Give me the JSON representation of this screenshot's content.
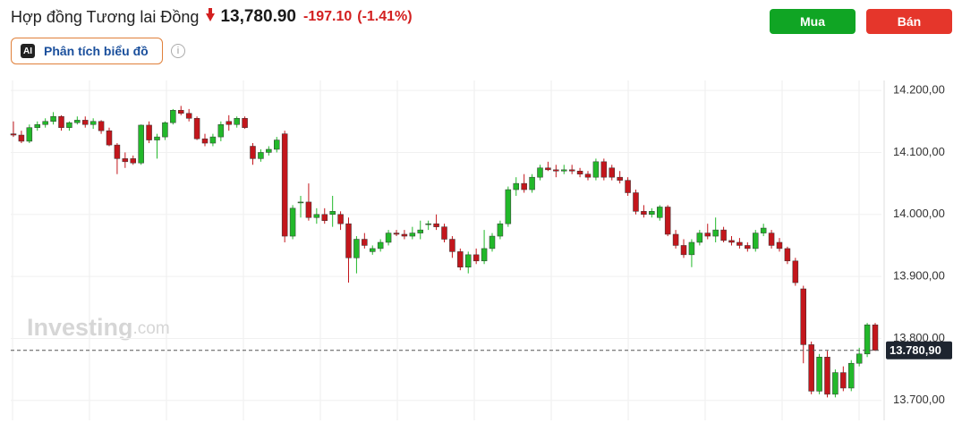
{
  "header": {
    "title": "Hợp đồng Tương lai Đồng",
    "price": "13,780.90",
    "change": "-197.10",
    "change_percent": "(-1.41%)",
    "buy": "Mua",
    "sell": "Bán",
    "ai_badge": "AI",
    "ai_button": "Phân tích biểu đồ"
  },
  "chart_data": {
    "type": "candlestick",
    "watermark": "Investing",
    "watermark_suffix": ".com",
    "up_color": "#22b82a",
    "down_color": "#c3161c",
    "ylim": [
      13668,
      14216
    ],
    "yticks": [
      {
        "value": 13700,
        "label": "13.700,00"
      },
      {
        "value": 13800,
        "label": "13.800,00"
      },
      {
        "value": 13900,
        "label": "13.900,00"
      },
      {
        "value": 14000,
        "label": "14.000,00"
      },
      {
        "value": 14100,
        "label": "14.100,00"
      },
      {
        "value": 14200,
        "label": "14.200,00"
      }
    ],
    "last_price": {
      "value": 13780.9,
      "label": "13.780,90"
    },
    "open": [
      14130,
      14128,
      14118,
      14140,
      14145,
      14150,
      14158,
      14140,
      14148,
      14152,
      14145,
      14150,
      14135,
      14112,
      14090,
      14090,
      14083,
      14144,
      14120,
      14125,
      14148,
      14168,
      14163,
      14155,
      14122,
      14115,
      14125,
      14150,
      14145,
      14155,
      14110,
      14090,
      14100,
      14105,
      14130,
      13965,
      14020,
      14020,
      13995,
      14000,
      14000,
      14000,
      13985,
      13930,
      13960,
      13940,
      13945,
      13955,
      13970,
      13968,
      13965,
      13970,
      13985,
      13985,
      13980,
      13960,
      13940,
      13915,
      13935,
      13925,
      13945,
      13965,
      13985,
      14040,
      14050,
      14040,
      14060,
      14075,
      14072,
      14070,
      14072,
      14070,
      14065,
      14060,
      14085,
      14075,
      14060,
      14055,
      14035,
      14005,
      14000,
      13995,
      14012,
      13968,
      13950,
      13935,
      13955,
      13970,
      13965,
      13975,
      13958,
      13955,
      13950,
      13945,
      13970,
      13970,
      13955,
      13945,
      13925,
      13880,
      13790,
      13715,
      13770,
      13710,
      13745,
      13720,
      13760,
      13775,
      13822
    ],
    "high": [
      14150,
      14135,
      14145,
      14150,
      14155,
      14165,
      14160,
      14150,
      14158,
      14158,
      14155,
      14152,
      14140,
      14115,
      14100,
      14095,
      14145,
      14150,
      14130,
      14150,
      14170,
      14175,
      14170,
      14158,
      14130,
      14130,
      14150,
      14160,
      14158,
      14158,
      14115,
      14105,
      14110,
      14125,
      14135,
      14015,
      14030,
      14050,
      14010,
      14010,
      14030,
      14005,
      13995,
      13965,
      13970,
      13950,
      13960,
      13975,
      13975,
      13975,
      13980,
      13990,
      13990,
      14000,
      13985,
      13965,
      13945,
      13940,
      13945,
      13975,
      13970,
      13990,
      14045,
      14060,
      14065,
      14065,
      14080,
      14085,
      14080,
      14080,
      14080,
      14075,
      14070,
      14090,
      14090,
      14080,
      14070,
      14060,
      14040,
      14015,
      14010,
      14015,
      14015,
      13975,
      13960,
      13960,
      13975,
      13985,
      13995,
      13980,
      13965,
      13962,
      13955,
      13975,
      13985,
      13975,
      13962,
      13948,
      13930,
      13885,
      13795,
      13775,
      13780,
      13750,
      13755,
      13765,
      13785,
      13825,
      13825
    ],
    "low": [
      14125,
      14115,
      14115,
      14135,
      14140,
      14145,
      14135,
      14135,
      14145,
      14140,
      14138,
      14130,
      14110,
      14065,
      14075,
      14080,
      14080,
      14115,
      14090,
      14120,
      14145,
      14160,
      14150,
      14120,
      14110,
      14110,
      14118,
      14135,
      14140,
      14138,
      14080,
      14085,
      14095,
      14100,
      13955,
      13960,
      13995,
      13990,
      13985,
      13985,
      13980,
      13975,
      13890,
      13905,
      13945,
      13935,
      13940,
      13950,
      13965,
      13960,
      13960,
      13960,
      13975,
      13975,
      13955,
      13930,
      13910,
      13905,
      13920,
      13920,
      13940,
      13960,
      13980,
      14030,
      14035,
      14035,
      14055,
      14070,
      14060,
      14065,
      14065,
      14060,
      14055,
      14055,
      14055,
      14055,
      14050,
      14030,
      14000,
      13995,
      13995,
      13990,
      13965,
      13945,
      13930,
      13915,
      13950,
      13960,
      13955,
      13955,
      13950,
      13945,
      13940,
      13940,
      13965,
      13945,
      13940,
      13920,
      13885,
      13760,
      13710,
      13710,
      13705,
      13705,
      13715,
      13715,
      13755,
      13770,
      13780
    ],
    "close": [
      14128,
      14118,
      14140,
      14145,
      14150,
      14158,
      14140,
      14148,
      14152,
      14145,
      14150,
      14135,
      14112,
      14090,
      14085,
      14083,
      14144,
      14120,
      14125,
      14148,
      14168,
      14163,
      14155,
      14122,
      14115,
      14125,
      14145,
      14145,
      14155,
      14140,
      14090,
      14100,
      14105,
      14120,
      13965,
      14010,
      14020,
      13995,
      14000,
      13990,
      14005,
      13985,
      13930,
      13960,
      13950,
      13945,
      13955,
      13970,
      13968,
      13965,
      13970,
      13975,
      13985,
      13980,
      13960,
      13940,
      13915,
      13935,
      13925,
      13945,
      13965,
      13985,
      14040,
      14050,
      14040,
      14060,
      14075,
      14072,
      14070,
      14072,
      14070,
      14065,
      14060,
      14085,
      14060,
      14060,
      14055,
      14035,
      14005,
      14000,
      14005,
      14012,
      13968,
      13950,
      13935,
      13955,
      13970,
      13965,
      13975,
      13958,
      13955,
      13950,
      13945,
      13970,
      13978,
      13950,
      13945,
      13925,
      13890,
      13790,
      13715,
      13770,
      13710,
      13745,
      13720,
      13760,
      13775,
      13822,
      13781
    ]
  }
}
